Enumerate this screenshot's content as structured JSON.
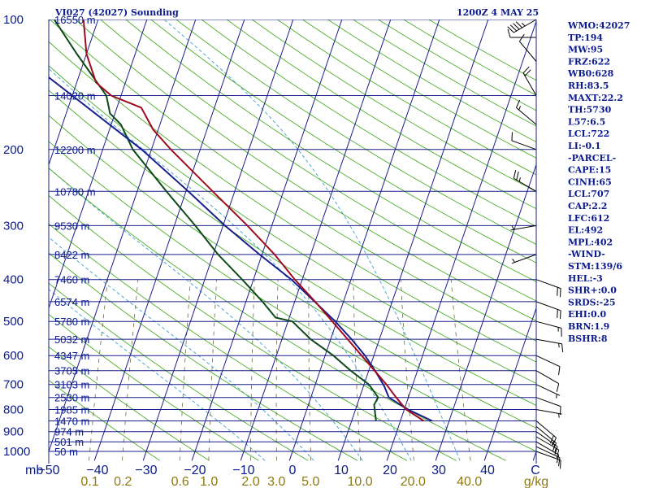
{
  "header": {
    "station": "VI027 (42027) Sounding",
    "time": "1200Z  4 MAY 25"
  },
  "indices": [
    "WMO:42027",
    "TP:194",
    "MW:95",
    "FRZ:622",
    "WB0:628",
    "RH:83.5",
    "MAXT:22.2",
    "TH:5730",
    "L57:6.5",
    "LCL:722",
    "LI:-0.1",
    "-PARCEL-",
    "CAPE:15",
    "CINH:65",
    "LCL:707",
    "CAP:2.2",
    "LFC:612",
    "EL:492",
    "MPL:402",
    "-WIND-",
    "STM:139/6",
    "HEL:-3",
    "SHR+:0.0",
    "SRDS:-25",
    "EHI:0.0",
    "BRN:1.9",
    "BSHR:8"
  ],
  "colors": {
    "temperature": "#9b0d1f",
    "dewpoint": "#0e4a18",
    "parcel": "#1a1e8c",
    "isobar": "#1a1e8c",
    "isotherm": "#1a1e8c",
    "dry_adiabat": "#4caf2a",
    "moist_adiabat": "#3a9fd0",
    "mixing_ratio": "#6b6b3a",
    "labels": "#0b1a8c",
    "mixing_labels": "#8c7a12"
  },
  "chart_data": {
    "type": "line",
    "title": "VI027 (42027) Sounding",
    "xlabel": "",
    "ylabel": "mb",
    "pressure_levels": [
      100,
      200,
      300,
      400,
      500,
      600,
      700,
      800,
      900,
      1000
    ],
    "pressure_labels": [
      "100",
      "200",
      "300",
      "400",
      "500",
      "600",
      "700",
      "800",
      "900",
      "1000"
    ],
    "height_ticks": [
      {
        "p": 100,
        "label": "16550 m"
      },
      {
        "p": 150,
        "label": "14020 m"
      },
      {
        "p": 200,
        "label": "12200 m"
      },
      {
        "p": 250,
        "label": "10780 m"
      },
      {
        "p": 300,
        "label": "9530 m"
      },
      {
        "p": 350,
        "label": "8422 m"
      },
      {
        "p": 400,
        "label": "7460 m"
      },
      {
        "p": 450,
        "label": "6574 m"
      },
      {
        "p": 500,
        "label": "5780 m"
      },
      {
        "p": 550,
        "label": "5032 m"
      },
      {
        "p": 600,
        "label": "4347 m"
      },
      {
        "p": 650,
        "label": "3705 m"
      },
      {
        "p": 700,
        "label": "3103 m"
      },
      {
        "p": 750,
        "label": "2530 m"
      },
      {
        "p": 800,
        "label": "1985 m"
      },
      {
        "p": 850,
        "label": "1470 m"
      },
      {
        "p": 900,
        "label": "974 m"
      },
      {
        "p": 950,
        "label": "501 m"
      },
      {
        "p": 1000,
        "label": "50 m"
      }
    ],
    "temperature_ticks": [
      -50,
      -40,
      -30,
      -20,
      -10,
      0,
      10,
      20,
      30,
      40
    ],
    "temperature_tick_labels": [
      "−50",
      "−40",
      "−30",
      "−20",
      "−10",
      "0",
      "10",
      "20",
      "30",
      "40"
    ],
    "xlim": [
      -50,
      50
    ],
    "mixing_ratios": [
      {
        "value": 0.1,
        "label": "0.1"
      },
      {
        "value": 0.2,
        "label": "0.2"
      },
      {
        "value": 0.6,
        "label": "0.6"
      },
      {
        "value": 1.0,
        "label": "1.0"
      },
      {
        "value": 2.0,
        "label": "2.0"
      },
      {
        "value": 3.0,
        "label": "3.0"
      },
      {
        "value": 5.0,
        "label": "5.0"
      },
      {
        "value": 10.0,
        "label": "10.0"
      },
      {
        "value": 20.0,
        "label": "20.0"
      },
      {
        "value": 40.0,
        "label": "40.0"
      }
    ],
    "mixing_unit": "g/kg",
    "corner_label": "C",
    "series": [
      {
        "key": "temperature",
        "points": [
          {
            "p": 850,
            "t": 24.8
          },
          {
            "p": 800,
            "t": 20.4
          },
          {
            "p": 750,
            "t": 17.5
          },
          {
            "p": 700,
            "t": 14.6
          },
          {
            "p": 650,
            "t": 11.2
          },
          {
            "p": 600,
            "t": 7.5
          },
          {
            "p": 550,
            "t": 3.5
          },
          {
            "p": 500,
            "t": -0.9
          },
          {
            "p": 450,
            "t": -5.8
          },
          {
            "p": 400,
            "t": -11.5
          },
          {
            "p": 350,
            "t": -17.4
          },
          {
            "p": 300,
            "t": -25.0
          },
          {
            "p": 250,
            "t": -34.5
          },
          {
            "p": 200,
            "t": -46.0
          },
          {
            "p": 180,
            "t": -51.0
          },
          {
            "p": 160,
            "t": -55.0
          },
          {
            "p": 150,
            "t": -62.0
          },
          {
            "p": 140,
            "t": -66.0
          },
          {
            "p": 120,
            "t": -70.0
          },
          {
            "p": 100,
            "t": -73.0
          }
        ]
      },
      {
        "key": "dewpoint",
        "points": [
          {
            "p": 850,
            "t": 15.0
          },
          {
            "p": 780,
            "t": 13.5
          },
          {
            "p": 750,
            "t": 13.8
          },
          {
            "p": 700,
            "t": 11.0
          },
          {
            "p": 650,
            "t": 6.3
          },
          {
            "p": 600,
            "t": 1.7
          },
          {
            "p": 550,
            "t": -4.1
          },
          {
            "p": 500,
            "t": -9.1
          },
          {
            "p": 490,
            "t": -12.8
          },
          {
            "p": 450,
            "t": -16.6
          },
          {
            "p": 400,
            "t": -22.3
          },
          {
            "p": 350,
            "t": -29.0
          },
          {
            "p": 300,
            "t": -35.7
          },
          {
            "p": 250,
            "t": -44.0
          },
          {
            "p": 200,
            "t": -53.8
          },
          {
            "p": 175,
            "t": -58.0
          },
          {
            "p": 165,
            "t": -61.0
          },
          {
            "p": 150,
            "t": -63.0
          },
          {
            "p": 120,
            "t": -72.0
          },
          {
            "p": 100,
            "t": -79.0
          }
        ]
      },
      {
        "key": "parcel",
        "points": [
          {
            "p": 850,
            "t": 26.5
          },
          {
            "p": 800,
            "t": 20.8
          },
          {
            "p": 750,
            "t": 16.0
          },
          {
            "p": 707,
            "t": 14.3
          },
          {
            "p": 650,
            "t": 11.3
          },
          {
            "p": 600,
            "t": 8.2
          },
          {
            "p": 550,
            "t": 4.3
          },
          {
            "p": 500,
            "t": -0.3
          },
          {
            "p": 450,
            "t": -5.9
          },
          {
            "p": 400,
            "t": -12.2
          },
          {
            "p": 350,
            "t": -20.5
          },
          {
            "p": 300,
            "t": -29.6
          },
          {
            "p": 250,
            "t": -39.5
          },
          {
            "p": 200,
            "t": -52.0
          },
          {
            "p": 150,
            "t": -70.0
          },
          {
            "p": 120,
            "t": -84.0
          }
        ]
      }
    ],
    "wind_barbs": [
      {
        "p": 1000,
        "dir": 110,
        "spd": 10
      },
      {
        "p": 975,
        "dir": 115,
        "spd": 10
      },
      {
        "p": 950,
        "dir": 120,
        "spd": 10
      },
      {
        "p": 925,
        "dir": 120,
        "spd": 15
      },
      {
        "p": 900,
        "dir": 125,
        "spd": 15
      },
      {
        "p": 875,
        "dir": 130,
        "spd": 15
      },
      {
        "p": 850,
        "dir": 130,
        "spd": 20
      },
      {
        "p": 800,
        "dir": 100,
        "spd": 5
      },
      {
        "p": 750,
        "dir": 110,
        "spd": 10
      },
      {
        "p": 700,
        "dir": 115,
        "spd": 5
      },
      {
        "p": 650,
        "dir": 120,
        "spd": 10
      },
      {
        "p": 600,
        "dir": 115,
        "spd": 10
      },
      {
        "p": 550,
        "dir": 100,
        "spd": 15
      },
      {
        "p": 500,
        "dir": 105,
        "spd": 15
      },
      {
        "p": 450,
        "dir": 110,
        "spd": 20
      },
      {
        "p": 400,
        "dir": 110,
        "spd": 20
      },
      {
        "p": 350,
        "dir": 250,
        "spd": 5
      },
      {
        "p": 300,
        "dir": 260,
        "spd": 5
      },
      {
        "p": 250,
        "dir": 300,
        "spd": 25
      },
      {
        "p": 200,
        "dir": 290,
        "spd": 10
      },
      {
        "p": 175,
        "dir": 310,
        "spd": 15
      },
      {
        "p": 150,
        "dir": 330,
        "spd": 20
      },
      {
        "p": 125,
        "dir": 320,
        "spd": 10
      },
      {
        "p": 110,
        "dir": 270,
        "spd": 10
      },
      {
        "p": 100,
        "dir": 240,
        "spd": 45
      }
    ]
  }
}
